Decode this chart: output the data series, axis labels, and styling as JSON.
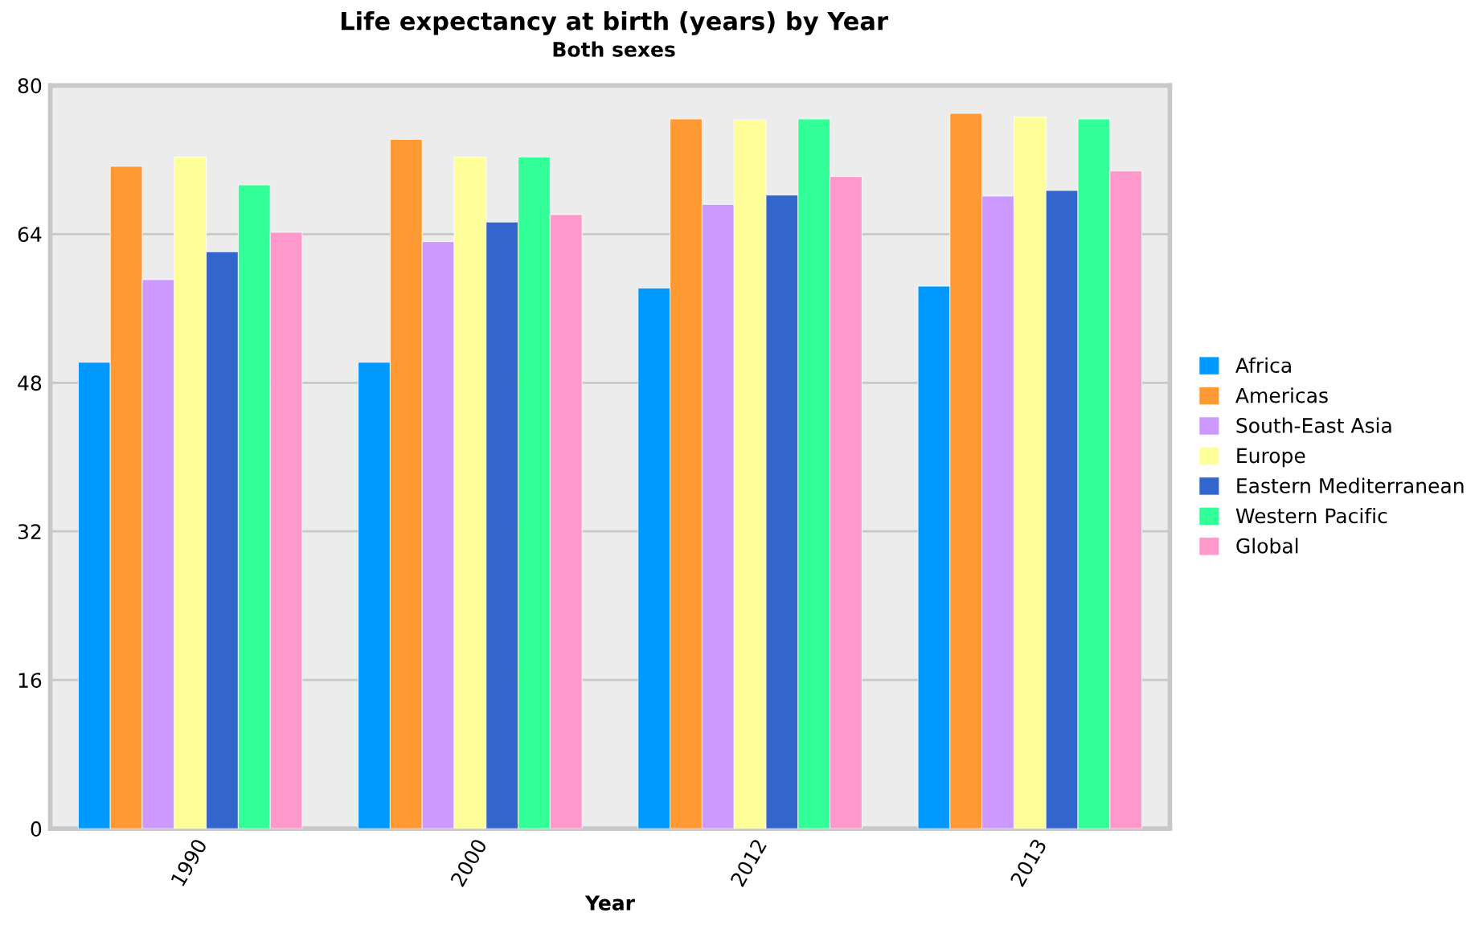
{
  "chart_data": {
    "type": "bar",
    "title": "Life expectancy at birth (years) by Year",
    "subtitle": "Both sexes",
    "xlabel": "Year",
    "categories": [
      "1990",
      "2000",
      "2012",
      "2013"
    ],
    "series": [
      {
        "name": "Africa",
        "color": "#0099ff",
        "values": [
          50.2,
          50.2,
          58.2,
          58.4
        ]
      },
      {
        "name": "Americas",
        "color": "#ff9933",
        "values": [
          71.3,
          74.2,
          76.4,
          77.0
        ]
      },
      {
        "name": "South-East Asia",
        "color": "#cc99ff",
        "values": [
          59.1,
          63.2,
          67.2,
          68.1
        ]
      },
      {
        "name": "Europe",
        "color": "#ffff99",
        "values": [
          72.3,
          72.3,
          76.3,
          76.6
        ]
      },
      {
        "name": "Eastern Mediterranean",
        "color": "#3366cc",
        "values": [
          62.1,
          65.3,
          68.2,
          68.7
        ]
      },
      {
        "name": "Western Pacific",
        "color": "#33ff99",
        "values": [
          69.3,
          72.3,
          76.4,
          76.4
        ]
      },
      {
        "name": "Global",
        "color": "#ff99cc",
        "values": [
          64.2,
          66.1,
          70.2,
          70.8
        ]
      }
    ],
    "ylim": [
      0,
      80
    ],
    "yticks": [
      0,
      16,
      32,
      48,
      64,
      80
    ],
    "grid": "y",
    "legend": "right"
  }
}
